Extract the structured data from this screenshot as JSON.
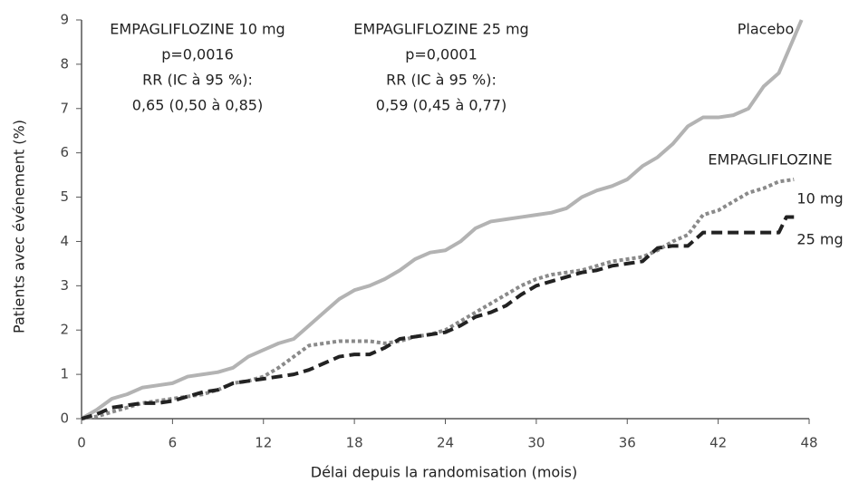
{
  "chart_data": {
    "type": "line",
    "x_label": "Délai depuis la randomisation (mois)",
    "y_label": "Patients avec événement (%)",
    "xlim": [
      0,
      48
    ],
    "xticks": [
      0,
      6,
      12,
      18,
      24,
      30,
      36,
      42,
      48
    ],
    "ylim": [
      0,
      9
    ],
    "yticks": [
      0,
      1,
      2,
      3,
      4,
      5,
      6,
      7,
      8,
      9
    ],
    "grid": false,
    "annotations": [
      [
        "EMPAGLIFLOZINE 10 mg",
        "p=0,0016",
        "RR (IC à 95 %):",
        "0,65 (0,50 à 0,85)"
      ],
      [
        "EMPAGLIFLOZINE 25 mg",
        "p=0,0001",
        "RR (IC à 95 %):",
        "0,59 (0,45 à  0,77)"
      ]
    ],
    "group_label": "EMPAGLIFLOZINE",
    "series": [
      {
        "name": "Placebo",
        "color": "#b3b3b3",
        "style": "solid",
        "x": [
          0,
          1,
          2,
          3,
          4,
          5,
          6,
          7,
          8,
          9,
          10,
          11,
          12,
          13,
          14,
          15,
          16,
          17,
          18,
          19,
          20,
          21,
          22,
          23,
          24,
          25,
          26,
          27,
          28,
          29,
          30,
          31,
          32,
          33,
          34,
          35,
          36,
          37,
          38,
          39,
          40,
          41,
          42,
          43,
          44,
          45,
          46,
          47,
          47.5
        ],
        "values": [
          0,
          0.2,
          0.45,
          0.55,
          0.7,
          0.75,
          0.8,
          0.95,
          1.0,
          1.05,
          1.15,
          1.4,
          1.55,
          1.7,
          1.8,
          2.1,
          2.4,
          2.7,
          2.9,
          3.0,
          3.15,
          3.35,
          3.6,
          3.75,
          3.8,
          4.0,
          4.3,
          4.45,
          4.5,
          4.55,
          4.6,
          4.65,
          4.75,
          5.0,
          5.15,
          5.25,
          5.4,
          5.7,
          5.9,
          6.2,
          6.6,
          6.8,
          6.8,
          6.85,
          7.0,
          7.5,
          7.8,
          8.6,
          9.0
        ]
      },
      {
        "name": "10 mg",
        "color": "#8a8a8a",
        "style": "dotted",
        "x": [
          0,
          1,
          2,
          3,
          4,
          5,
          6,
          7,
          8,
          9,
          10,
          11,
          12,
          13,
          14,
          15,
          16,
          17,
          18,
          19,
          20,
          21,
          22,
          23,
          24,
          25,
          26,
          27,
          28,
          29,
          30,
          31,
          32,
          33,
          34,
          35,
          36,
          37,
          38,
          39,
          40,
          41,
          42,
          43,
          44,
          45,
          46,
          47
        ],
        "values": [
          0,
          0.05,
          0.15,
          0.25,
          0.35,
          0.4,
          0.45,
          0.5,
          0.55,
          0.65,
          0.8,
          0.85,
          0.95,
          1.15,
          1.4,
          1.65,
          1.7,
          1.75,
          1.75,
          1.75,
          1.7,
          1.75,
          1.85,
          1.9,
          2.0,
          2.2,
          2.4,
          2.6,
          2.8,
          3.0,
          3.15,
          3.25,
          3.3,
          3.35,
          3.45,
          3.55,
          3.6,
          3.65,
          3.8,
          4.0,
          4.15,
          4.6,
          4.7,
          4.9,
          5.1,
          5.2,
          5.35,
          5.4
        ]
      },
      {
        "name": "25 mg",
        "color": "#222222",
        "style": "dashed",
        "x": [
          0,
          1,
          2,
          3,
          4,
          5,
          6,
          7,
          8,
          9,
          10,
          11,
          12,
          13,
          14,
          15,
          16,
          17,
          18,
          19,
          20,
          21,
          22,
          23,
          24,
          25,
          26,
          27,
          28,
          29,
          30,
          31,
          32,
          33,
          34,
          35,
          36,
          37,
          38,
          39,
          40,
          41,
          42,
          43,
          44,
          45,
          46,
          46.5,
          47
        ],
        "values": [
          0,
          0.1,
          0.25,
          0.3,
          0.35,
          0.35,
          0.4,
          0.5,
          0.6,
          0.65,
          0.8,
          0.85,
          0.9,
          0.95,
          1.0,
          1.1,
          1.25,
          1.4,
          1.45,
          1.45,
          1.6,
          1.8,
          1.85,
          1.9,
          1.95,
          2.1,
          2.3,
          2.4,
          2.55,
          2.8,
          3.0,
          3.1,
          3.2,
          3.3,
          3.35,
          3.45,
          3.5,
          3.55,
          3.85,
          3.9,
          3.9,
          4.2,
          4.2,
          4.2,
          4.2,
          4.2,
          4.2,
          4.55,
          4.55
        ]
      }
    ]
  }
}
